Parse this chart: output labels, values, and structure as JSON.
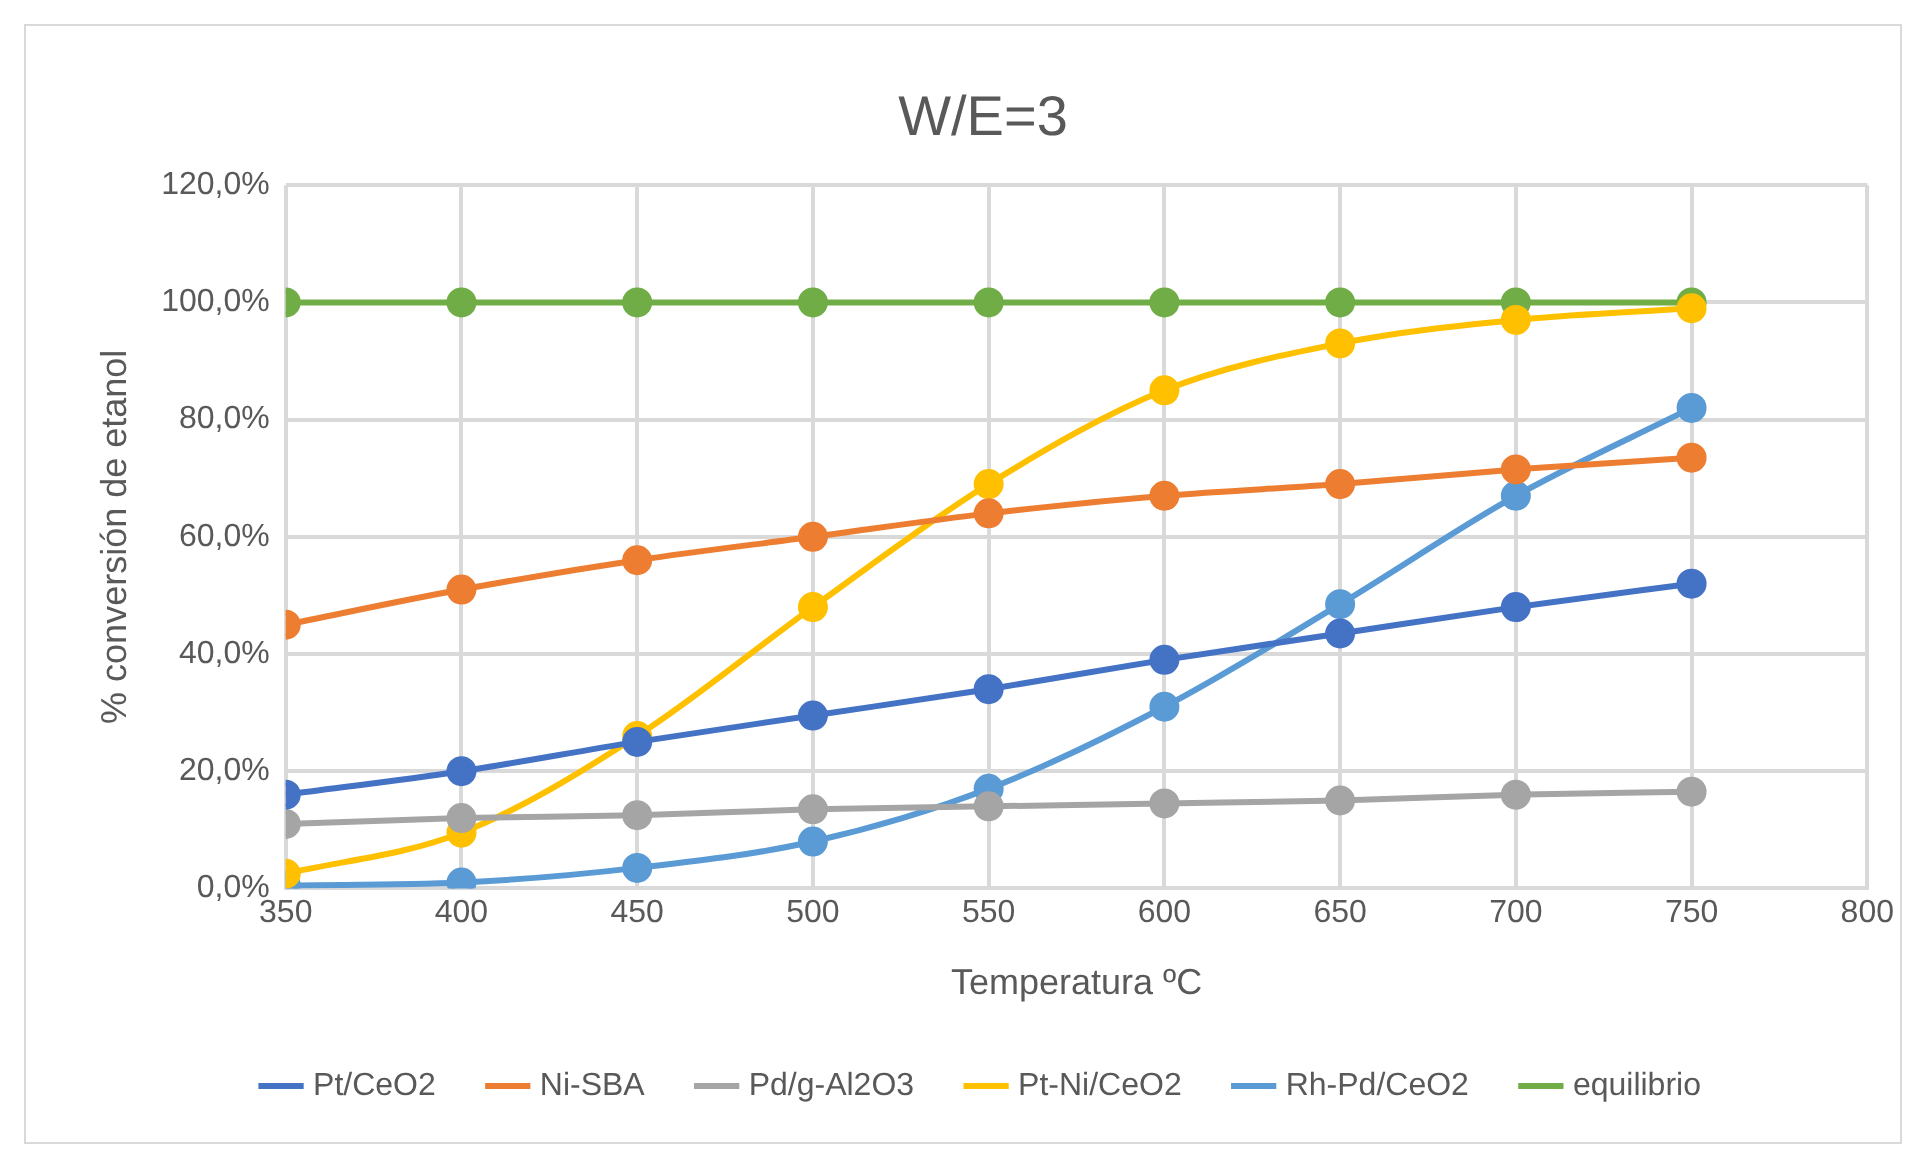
{
  "chart_data": {
    "type": "line",
    "title": "W/E=3",
    "xlabel": "Temperatura ºC",
    "ylabel": "% conversión de etanol",
    "x": [
      350,
      400,
      450,
      500,
      550,
      600,
      650,
      700,
      750
    ],
    "xlim": [
      350,
      800
    ],
    "xticks": [
      350,
      400,
      450,
      500,
      550,
      600,
      650,
      700,
      750,
      800
    ],
    "ylim": [
      0,
      120
    ],
    "yticks": [
      {
        "value": 0,
        "label": "0,0%"
      },
      {
        "value": 20,
        "label": "20,0%"
      },
      {
        "value": 40,
        "label": "40,0%"
      },
      {
        "value": 60,
        "label": "60,0%"
      },
      {
        "value": 80,
        "label": "80,0%"
      },
      {
        "value": 100,
        "label": "100,0%"
      },
      {
        "value": 120,
        "label": "120,0%"
      }
    ],
    "grid": true,
    "legend": "bottom",
    "marker": "circle",
    "line_style": "solid",
    "series": [
      {
        "name": "Pt/CeO2",
        "color": "#4472c4",
        "values": [
          16,
          20,
          25,
          29.5,
          34,
          39,
          43.5,
          48,
          52
        ]
      },
      {
        "name": "Ni-SBA",
        "color": "#ed7d31",
        "values": [
          45,
          51,
          56,
          60,
          64,
          67,
          69,
          71.5,
          73.5
        ]
      },
      {
        "name": "Pd/g-Al2O3",
        "color": "#a5a5a5",
        "values": [
          11,
          12,
          12.5,
          13.5,
          14,
          14.5,
          15,
          16,
          16.5
        ]
      },
      {
        "name": "Pt-Ni/CeO2",
        "color": "#ffc000",
        "values": [
          2.5,
          9.5,
          26,
          48,
          69,
          85,
          93,
          97,
          99
        ]
      },
      {
        "name": "Rh-Pd/CeO2",
        "color": "#5b9bd5",
        "values": [
          0.5,
          1,
          3.5,
          8,
          17,
          31,
          48.5,
          67,
          82
        ]
      },
      {
        "name": "equilibrio",
        "color": "#70ad47",
        "values": [
          100,
          100,
          100,
          100,
          100,
          100,
          100,
          100,
          100
        ]
      }
    ]
  }
}
